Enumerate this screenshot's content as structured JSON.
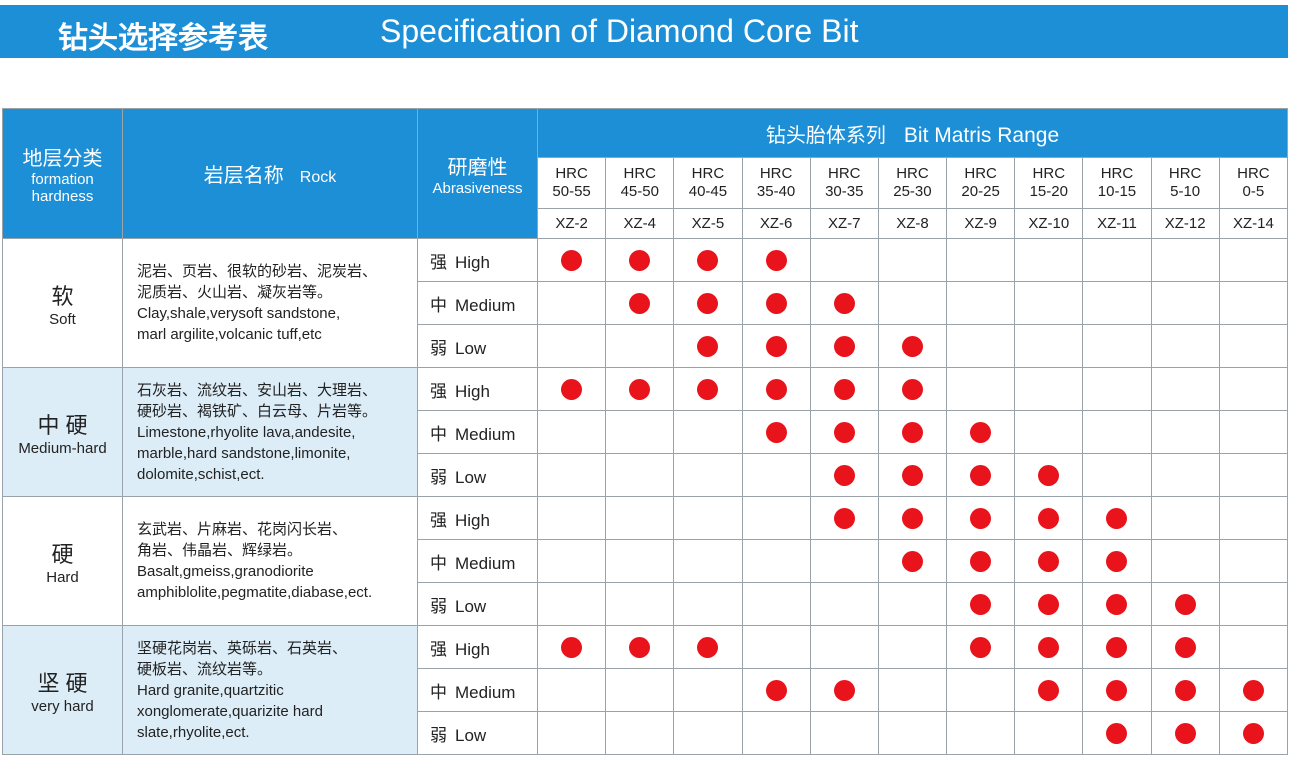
{
  "header": {
    "title_zh": "钻头选择参考表",
    "title_en": "Specification of Diamond Core Bit"
  },
  "table": {
    "head": {
      "formation_zh": "地层分类",
      "formation_en": [
        "formation",
        "hardness"
      ],
      "rock_zh": "岩层名称",
      "rock_en": "Rock",
      "abrasive_zh": "研磨性",
      "abrasive_en": "Abrasiveness",
      "range_zh": "钻头胎体系列",
      "range_en": "Bit Matris Range"
    },
    "columns": [
      {
        "hrc": "HRC",
        "range": "50-55",
        "code": "XZ-2"
      },
      {
        "hrc": "HRC",
        "range": "45-50",
        "code": "XZ-4"
      },
      {
        "hrc": "HRC",
        "range": "40-45",
        "code": "XZ-5"
      },
      {
        "hrc": "HRC",
        "range": "35-40",
        "code": "XZ-6"
      },
      {
        "hrc": "HRC",
        "range": "30-35",
        "code": "XZ-7"
      },
      {
        "hrc": "HRC",
        "range": "25-30",
        "code": "XZ-8"
      },
      {
        "hrc": "HRC",
        "range": "20-25",
        "code": "XZ-9"
      },
      {
        "hrc": "HRC",
        "range": "15-20",
        "code": "XZ-10"
      },
      {
        "hrc": "HRC",
        "range": "10-15",
        "code": "XZ-11"
      },
      {
        "hrc": "HRC",
        "range": "5-10",
        "code": "XZ-12"
      },
      {
        "hrc": "HRC",
        "range": "0-5",
        "code": "XZ-14"
      }
    ],
    "groups": [
      {
        "zh": "软",
        "en": "Soft",
        "rock_zh": [
          "泥岩、页岩、很软的砂岩、泥炭岩、",
          "泥质岩、火山岩、凝灰岩等。"
        ],
        "rock_en": [
          "Clay,shale,verysoft sandstone,",
          "marl argilite,volcanic tuff,etc"
        ],
        "rows": [
          {
            "zh": "强",
            "en": "High",
            "dots": [
              1,
              1,
              1,
              1,
              0,
              0,
              0,
              0,
              0,
              0,
              0
            ]
          },
          {
            "zh": "中",
            "en": "Medium",
            "dots": [
              0,
              1,
              1,
              1,
              1,
              0,
              0,
              0,
              0,
              0,
              0
            ]
          },
          {
            "zh": "弱",
            "en": "Low",
            "dots": [
              0,
              0,
              1,
              1,
              1,
              1,
              0,
              0,
              0,
              0,
              0
            ]
          }
        ]
      },
      {
        "zh": "中 硬",
        "en": "Medium-hard",
        "rock_zh": [
          "石灰岩、流纹岩、安山岩、大理岩、",
          "硬砂岩、褐铁矿、白云母、片岩等。"
        ],
        "rock_en": [
          "Limestone,rhyolite lava,andesite,",
          "marble,hard sandstone,limonite,",
          "dolomite,schist,ect."
        ],
        "rows": [
          {
            "zh": "强",
            "en": "High",
            "dots": [
              1,
              1,
              1,
              1,
              1,
              1,
              0,
              0,
              0,
              0,
              0
            ]
          },
          {
            "zh": "中",
            "en": "Medium",
            "dots": [
              0,
              0,
              0,
              1,
              1,
              1,
              1,
              0,
              0,
              0,
              0
            ]
          },
          {
            "zh": "弱",
            "en": "Low",
            "dots": [
              0,
              0,
              0,
              0,
              1,
              1,
              1,
              1,
              0,
              0,
              0
            ]
          }
        ]
      },
      {
        "zh": "硬",
        "en": "Hard",
        "rock_zh": [
          "玄武岩、片麻岩、花岗闪长岩、",
          "角岩、伟晶岩、辉绿岩。"
        ],
        "rock_en": [
          "Basalt,gmeiss,granodiorite",
          "amphiblolite,pegmatite,diabase,ect."
        ],
        "rows": [
          {
            "zh": "强",
            "en": "High",
            "dots": [
              0,
              0,
              0,
              0,
              1,
              1,
              1,
              1,
              1,
              0,
              0
            ]
          },
          {
            "zh": "中",
            "en": "Medium",
            "dots": [
              0,
              0,
              0,
              0,
              0,
              1,
              1,
              1,
              1,
              0,
              0
            ]
          },
          {
            "zh": "弱",
            "en": "Low",
            "dots": [
              0,
              0,
              0,
              0,
              0,
              0,
              1,
              1,
              1,
              1,
              0
            ]
          }
        ]
      },
      {
        "zh": "坚 硬",
        "en": "very hard",
        "rock_zh": [
          "坚硬花岗岩、英砾岩、石英岩、",
          "硬板岩、流纹岩等。"
        ],
        "rock_en": [
          "Hard granite,quartzitic",
          "xonglomerate,quarizite hard",
          "slate,rhyolite,ect."
        ],
        "rows": [
          {
            "zh": "强",
            "en": "High",
            "dots": [
              1,
              1,
              1,
              0,
              0,
              0,
              1,
              1,
              1,
              1,
              0
            ]
          },
          {
            "zh": "中",
            "en": "Medium",
            "dots": [
              0,
              0,
              0,
              1,
              1,
              0,
              0,
              1,
              1,
              1,
              1
            ]
          },
          {
            "zh": "弱",
            "en": "Low",
            "dots": [
              0,
              0,
              0,
              0,
              0,
              0,
              0,
              0,
              1,
              1,
              1
            ]
          }
        ]
      }
    ]
  }
}
